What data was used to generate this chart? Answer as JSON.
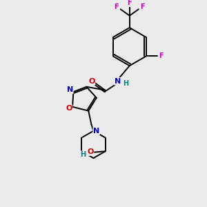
{
  "background_color": "#ebebeb",
  "bond_color": "#000000",
  "atom_colors": {
    "N": "#0000cc",
    "O": "#cc0000",
    "F": "#cc00cc",
    "H": "#008080",
    "C": "#000000"
  },
  "figsize": [
    3.0,
    3.0
  ],
  "dpi": 100
}
